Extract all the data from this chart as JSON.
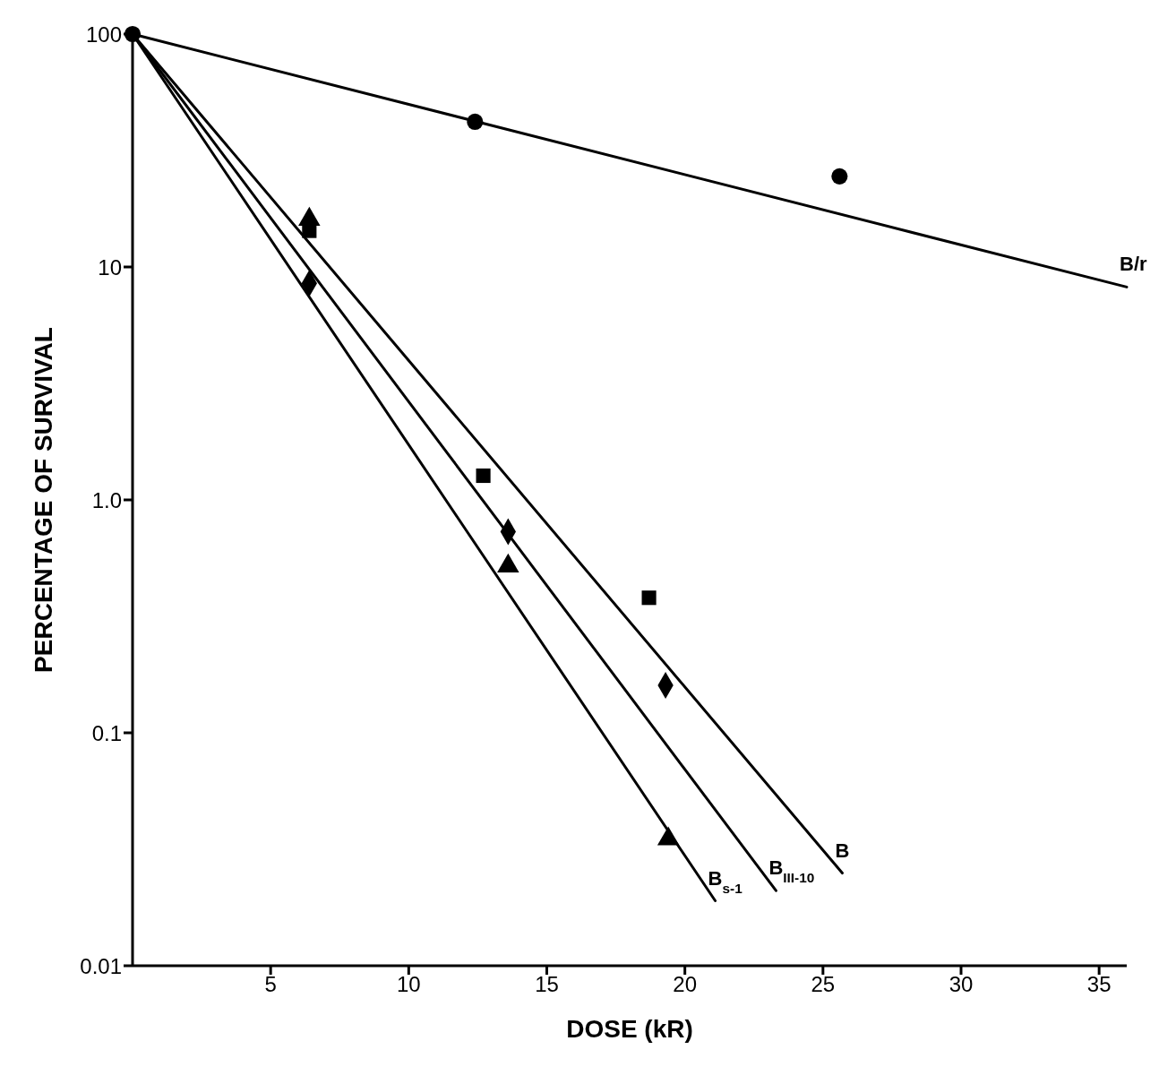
{
  "chart_data": {
    "type": "scatter",
    "xlabel": "DOSE (kR)",
    "ylabel": "PERCENTAGE OF SURVIVAL",
    "log": "y",
    "xlim": [
      0,
      36
    ],
    "xticks": [
      5,
      10,
      15,
      20,
      25,
      30,
      35
    ],
    "ylim": [
      0.01,
      100
    ],
    "yticks": [
      {
        "value": 0.01,
        "label": "0.01"
      },
      {
        "value": 0.1,
        "label": "0.1"
      },
      {
        "value": 1,
        "label": "1.0"
      },
      10,
      100
    ],
    "grid": false,
    "legend": false,
    "line_style": "solid",
    "series": [
      {
        "marker": "circle",
        "color": "#000000",
        "x": [
          0,
          12.4,
          25.6
        ],
        "values": [
          100,
          42,
          24.5
        ]
      },
      {
        "marker": "square",
        "color": "#000000",
        "x": [
          6.4,
          12.7,
          18.7
        ],
        "values": [
          14.3,
          1.27,
          0.38
        ]
      },
      {
        "marker": "diamond",
        "color": "#000000",
        "x": [
          6.4,
          13.6,
          19.3
        ],
        "values": [
          8.5,
          0.73,
          0.16
        ]
      },
      {
        "marker": "triangle",
        "color": "#000000",
        "x": [
          6.4,
          13.6,
          19.4
        ],
        "values": [
          16,
          0.52,
          0.035
        ]
      },
      {
        "type": "line",
        "marker": "none",
        "name": "B/r",
        "color": "#000000",
        "x": [
          0,
          36
        ],
        "values": [
          100,
          8.2
        ]
      },
      {
        "type": "line",
        "marker": "none",
        "name": "B",
        "color": "#000000",
        "x": [
          0,
          25.7
        ],
        "values": [
          100,
          0.025
        ]
      },
      {
        "type": "line",
        "marker": "none",
        "name": "B$_{III-10}$",
        "color": "#000000",
        "x": [
          0,
          23.3
        ],
        "values": [
          100,
          0.021
        ]
      },
      {
        "type": "line",
        "marker": "none",
        "name": "B$_{s-1}$",
        "color": "#000000",
        "x": [
          0,
          21.1
        ],
        "values": [
          100,
          0.019
        ]
      }
    ]
  }
}
